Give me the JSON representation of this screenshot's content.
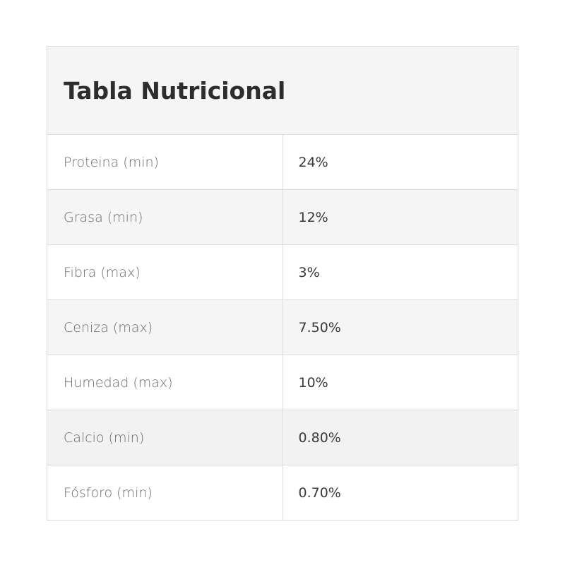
{
  "table": {
    "title": "Tabla Nutricional",
    "rows": [
      {
        "label": "Proteina (min)",
        "value": "24%"
      },
      {
        "label": "Grasa (min)",
        "value": "12%"
      },
      {
        "label": "Fibra (max)",
        "value": "3%"
      },
      {
        "label": "Ceniza (max)",
        "value": "7.50%"
      },
      {
        "label": "Humedad (max)",
        "value": "10%"
      },
      {
        "label": "Calcio (min)",
        "value": "0.80%"
      },
      {
        "label": "Fósforo (min)",
        "value": "0.70%"
      }
    ]
  },
  "colors": {
    "header_bg": "#f5f5f5",
    "border": "#dcdcdc",
    "label_text": "#6b6b6b",
    "value_text": "#3a3a3a"
  }
}
